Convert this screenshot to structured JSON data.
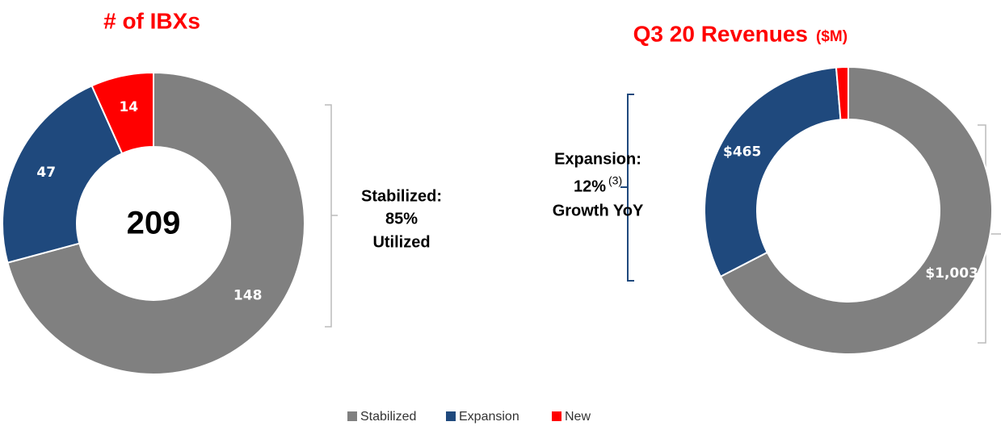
{
  "chart_data": [
    {
      "type": "donut",
      "title": "# of IBXs",
      "categories": [
        "Stabilized",
        "Expansion",
        "New"
      ],
      "values": [
        148,
        47,
        14
      ],
      "colors": [
        "#808080",
        "#1f497d",
        "#ff0000"
      ],
      "center_label": 209,
      "annotation": {
        "lines": [
          "Stabilized:",
          "85%",
          "Utilized"
        ]
      }
    },
    {
      "type": "donut",
      "title": "Q3 20 Revenues",
      "subtitle": "($M)",
      "categories": [
        "Stabilized",
        "Expansion",
        "New"
      ],
      "values": [
        1003,
        465,
        20
      ],
      "value_labels": [
        "$1,003",
        "$465",
        null
      ],
      "colors": [
        "#808080",
        "#1f497d",
        "#ff0000"
      ],
      "annotation": {
        "lines": [
          "Expansion:",
          "12%",
          "Growth YoY"
        ],
        "footnote": "(3)"
      }
    }
  ]
}
